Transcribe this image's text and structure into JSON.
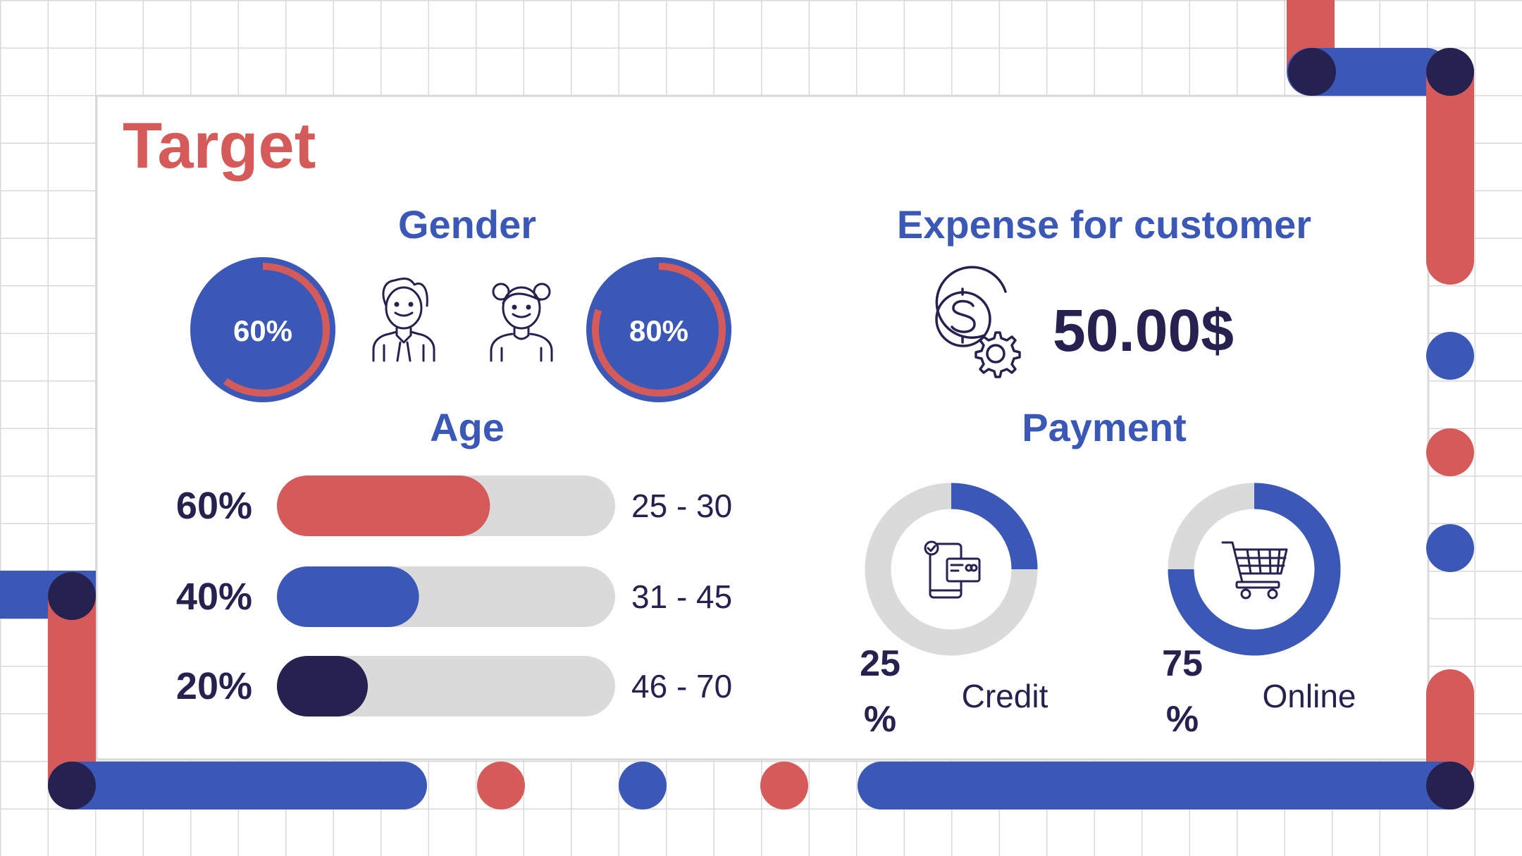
{
  "slide": {
    "title": "Target"
  },
  "gender": {
    "heading": "Gender",
    "male": {
      "percent_label": "60%",
      "value": 60,
      "icon": "man-icon"
    },
    "female": {
      "percent_label": "80%",
      "value": 80,
      "icon": "woman-icon"
    }
  },
  "age": {
    "heading": "Age",
    "rows": [
      {
        "percent_label": "60%",
        "value": 60,
        "range": "25 - 30",
        "color": "#D55B5B"
      },
      {
        "percent_label": "40%",
        "value": 40,
        "range": "31 - 45",
        "color": "#3C58B7"
      },
      {
        "percent_label": "20%",
        "value": 20,
        "range": "46 - 70",
        "color": "#252250"
      }
    ]
  },
  "expense": {
    "heading": "Expense for customer",
    "amount": "50.00$",
    "icon": "dollar-gear-icon"
  },
  "payment": {
    "heading": "Payment",
    "items": [
      {
        "label": "Credit",
        "value_top": "25",
        "value_bottom": "%",
        "value": 25,
        "icon": "mobile-card-icon"
      },
      {
        "label": "Online",
        "value_top": "75",
        "value_bottom": "%",
        "value": 75,
        "icon": "shopping-cart-icon"
      }
    ]
  },
  "colors": {
    "red": "#D55B5B",
    "blue": "#3C58B7",
    "navy": "#252250",
    "track": "#DADADA",
    "grid": "#D9D9D9"
  }
}
